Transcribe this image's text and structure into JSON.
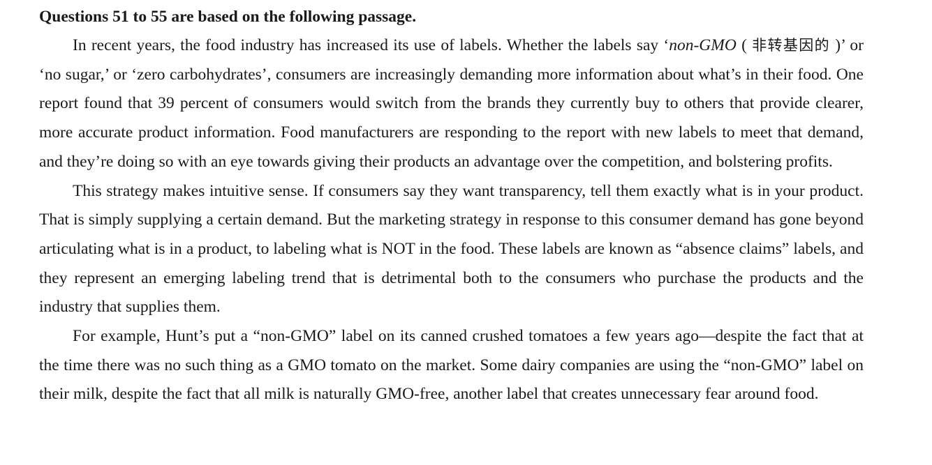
{
  "heading": "Questions 51 to 55 are based on the following passage.",
  "paragraphs": [
    {
      "p1_a": "In recent years, the food industry has increased its use of labels. Whether the labels say ‘",
      "p1_italic": "non-GMO",
      "p1_b": " ( ",
      "p1_cjk": "非转基因的",
      "p1_c": " )’ or ‘no sugar,’ or ‘zero carbohydrates’, consumers are increasingly demanding more information about what’s in their food. One report found that 39 percent of consumers would switch from the brands they currently buy to others that provide clearer, more accurate product information. Food manufacturers are responding to the report with new labels to meet that demand, and they’re doing so with an eye towards giving their products an advantage over the competition, and bolstering profits."
    },
    {
      "text": "This strategy makes intuitive sense. If consumers say they want transparency, tell them exactly what is in your product. That is simply supplying a certain demand. But the marketing strategy in response to this consumer demand has gone beyond articulating what is in a product, to labeling what is NOT in the food. These labels are known as “absence claims” labels, and they represent an emerging labeling trend that is detrimental both to the consumers who purchase the products and the industry that supplies them."
    },
    {
      "text": "For example, Hunt’s put a “non-GMO” label on its canned crushed tomatoes a few years ago—despite the fact that at the time there was no such thing as a GMO tomato on the market. Some dairy companies are using the “non-GMO” label on their milk, despite the fact that all milk is naturally GMO-free, another label that creates unnecessary fear around food."
    }
  ]
}
